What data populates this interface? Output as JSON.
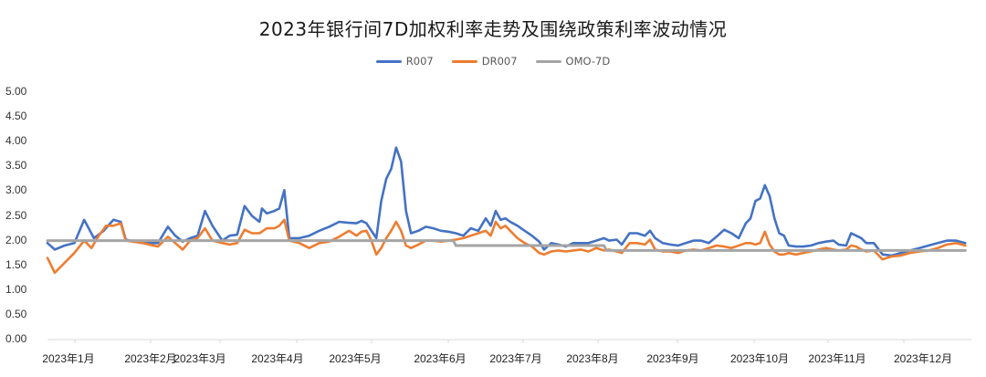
{
  "chart_data": {
    "type": "line",
    "title": "2023年银行间7D加权利率走势及围绕政策利率波动情况",
    "xlabel": "",
    "ylabel": "",
    "ylim": [
      0,
      5
    ],
    "y_ticks": [
      "5.00",
      "4.50",
      "4.00",
      "3.50",
      "3.00",
      "2.50",
      "2.00",
      "1.50",
      "1.00",
      "0.50",
      "0.00"
    ],
    "x_ticks": [
      "2023年1月",
      "2023年2月",
      "2023年3月",
      "2023年4月",
      "2023年5月",
      "2023年6月",
      "2023年7月",
      "2023年8月",
      "2023年9月",
      "2023年10月",
      "2023年11月",
      "2023年12月"
    ],
    "grid": false,
    "legend_position": "top",
    "x_unit": "day of year 2023 (approx.)",
    "series": [
      {
        "name": "R007",
        "color": "#4472C4",
        "points": [
          [
            1,
            1.95
          ],
          [
            4,
            1.82
          ],
          [
            8,
            1.9
          ],
          [
            12,
            1.95
          ],
          [
            16,
            2.42
          ],
          [
            20,
            2.05
          ],
          [
            24,
            2.2
          ],
          [
            28,
            2.42
          ],
          [
            31,
            2.38
          ],
          [
            33,
            2.02
          ],
          [
            40,
            1.95
          ],
          [
            46,
            1.95
          ],
          [
            50,
            2.28
          ],
          [
            53,
            2.1
          ],
          [
            56,
            1.98
          ],
          [
            59,
            2.05
          ],
          [
            62,
            2.1
          ],
          [
            65,
            2.6
          ],
          [
            68,
            2.3
          ],
          [
            72,
            2.0
          ],
          [
            75,
            2.1
          ],
          [
            78,
            2.12
          ],
          [
            81,
            2.7
          ],
          [
            84,
            2.5
          ],
          [
            87,
            2.38
          ],
          [
            88,
            2.65
          ],
          [
            90,
            2.55
          ],
          [
            93,
            2.6
          ],
          [
            95,
            2.65
          ],
          [
            97,
            3.02
          ],
          [
            99,
            2.05
          ],
          [
            103,
            2.05
          ],
          [
            107,
            2.1
          ],
          [
            111,
            2.2
          ],
          [
            115,
            2.28
          ],
          [
            119,
            2.38
          ],
          [
            123,
            2.36
          ],
          [
            126,
            2.35
          ],
          [
            128,
            2.4
          ],
          [
            130,
            2.35
          ],
          [
            132,
            2.2
          ],
          [
            134,
            2.05
          ],
          [
            136,
            2.8
          ],
          [
            138,
            3.25
          ],
          [
            140,
            3.45
          ],
          [
            142,
            3.88
          ],
          [
            144,
            3.6
          ],
          [
            146,
            2.6
          ],
          [
            148,
            2.15
          ],
          [
            151,
            2.2
          ],
          [
            154,
            2.28
          ],
          [
            157,
            2.25
          ],
          [
            160,
            2.2
          ],
          [
            163,
            2.18
          ],
          [
            166,
            2.15
          ],
          [
            169,
            2.1
          ],
          [
            172,
            2.25
          ],
          [
            175,
            2.2
          ],
          [
            178,
            2.45
          ],
          [
            180,
            2.3
          ],
          [
            182,
            2.6
          ],
          [
            184,
            2.42
          ],
          [
            186,
            2.45
          ],
          [
            188,
            2.38
          ],
          [
            191,
            2.3
          ],
          [
            194,
            2.2
          ],
          [
            197,
            2.1
          ],
          [
            200,
            1.98
          ],
          [
            202,
            1.82
          ],
          [
            205,
            1.95
          ],
          [
            208,
            1.92
          ],
          [
            211,
            1.88
          ],
          [
            214,
            1.95
          ],
          [
            217,
            1.95
          ],
          [
            220,
            1.95
          ],
          [
            223,
            2.0
          ],
          [
            226,
            2.05
          ],
          [
            228,
            2.0
          ],
          [
            231,
            2.02
          ],
          [
            233,
            1.92
          ],
          [
            236,
            2.15
          ],
          [
            239,
            2.15
          ],
          [
            242,
            2.1
          ],
          [
            244,
            2.2
          ],
          [
            246,
            2.05
          ],
          [
            249,
            1.95
          ],
          [
            252,
            1.92
          ],
          [
            255,
            1.9
          ],
          [
            258,
            1.95
          ],
          [
            261,
            2.0
          ],
          [
            264,
            2.0
          ],
          [
            267,
            1.95
          ],
          [
            270,
            2.08
          ],
          [
            273,
            2.22
          ],
          [
            276,
            2.15
          ],
          [
            279,
            2.05
          ],
          [
            282,
            2.35
          ],
          [
            284,
            2.45
          ],
          [
            286,
            2.8
          ],
          [
            288,
            2.85
          ],
          [
            290,
            3.12
          ],
          [
            292,
            2.9
          ],
          [
            294,
            2.45
          ],
          [
            296,
            2.15
          ],
          [
            298,
            2.1
          ],
          [
            300,
            1.9
          ],
          [
            303,
            1.88
          ],
          [
            306,
            1.88
          ],
          [
            309,
            1.9
          ],
          [
            312,
            1.95
          ],
          [
            315,
            1.98
          ],
          [
            318,
            2.0
          ],
          [
            320,
            1.92
          ],
          [
            323,
            1.9
          ],
          [
            325,
            2.15
          ],
          [
            327,
            2.1
          ],
          [
            329,
            2.05
          ],
          [
            331,
            1.95
          ],
          [
            334,
            1.95
          ],
          [
            337,
            1.72
          ],
          [
            340,
            1.7
          ],
          [
            343,
            1.75
          ],
          [
            346,
            1.8
          ],
          [
            349,
            1.85
          ],
          [
            352,
            1.9
          ],
          [
            355,
            1.95
          ],
          [
            358,
            2.0
          ],
          [
            361,
            2.0
          ],
          [
            364,
            1.95
          ]
        ]
      },
      {
        "name": "DR007",
        "color": "#ED7D31",
        "points": [
          [
            1,
            1.65
          ],
          [
            4,
            1.35
          ],
          [
            8,
            1.55
          ],
          [
            12,
            1.75
          ],
          [
            16,
            2.0
          ],
          [
            19,
            1.85
          ],
          [
            22,
            2.1
          ],
          [
            25,
            2.3
          ],
          [
            28,
            2.3
          ],
          [
            31,
            2.35
          ],
          [
            33,
            2.0
          ],
          [
            40,
            1.95
          ],
          [
            46,
            1.88
          ],
          [
            50,
            2.08
          ],
          [
            53,
            1.95
          ],
          [
            56,
            1.82
          ],
          [
            59,
            2.0
          ],
          [
            62,
            2.05
          ],
          [
            65,
            2.25
          ],
          [
            68,
            2.0
          ],
          [
            72,
            1.95
          ],
          [
            75,
            1.92
          ],
          [
            78,
            1.95
          ],
          [
            81,
            2.22
          ],
          [
            84,
            2.15
          ],
          [
            87,
            2.15
          ],
          [
            90,
            2.25
          ],
          [
            93,
            2.25
          ],
          [
            95,
            2.3
          ],
          [
            97,
            2.42
          ],
          [
            99,
            2.0
          ],
          [
            103,
            1.95
          ],
          [
            107,
            1.85
          ],
          [
            111,
            1.95
          ],
          [
            115,
            1.98
          ],
          [
            119,
            2.08
          ],
          [
            123,
            2.2
          ],
          [
            126,
            2.1
          ],
          [
            128,
            2.18
          ],
          [
            130,
            2.2
          ],
          [
            132,
            2.0
          ],
          [
            134,
            1.72
          ],
          [
            136,
            1.85
          ],
          [
            138,
            2.05
          ],
          [
            140,
            2.2
          ],
          [
            142,
            2.38
          ],
          [
            144,
            2.2
          ],
          [
            146,
            1.9
          ],
          [
            148,
            1.85
          ],
          [
            151,
            1.92
          ],
          [
            154,
            2.0
          ],
          [
            157,
            2.0
          ],
          [
            160,
            1.98
          ],
          [
            163,
            2.0
          ],
          [
            166,
            2.02
          ],
          [
            169,
            2.05
          ],
          [
            172,
            2.1
          ],
          [
            175,
            2.15
          ],
          [
            178,
            2.2
          ],
          [
            180,
            2.1
          ],
          [
            182,
            2.38
          ],
          [
            184,
            2.25
          ],
          [
            186,
            2.3
          ],
          [
            188,
            2.2
          ],
          [
            191,
            2.05
          ],
          [
            194,
            1.95
          ],
          [
            197,
            1.88
          ],
          [
            200,
            1.75
          ],
          [
            202,
            1.72
          ],
          [
            205,
            1.78
          ],
          [
            208,
            1.8
          ],
          [
            211,
            1.78
          ],
          [
            214,
            1.8
          ],
          [
            217,
            1.82
          ],
          [
            220,
            1.78
          ],
          [
            223,
            1.85
          ],
          [
            226,
            1.8
          ],
          [
            228,
            1.82
          ],
          [
            231,
            1.78
          ],
          [
            233,
            1.75
          ],
          [
            236,
            1.95
          ],
          [
            239,
            1.95
          ],
          [
            242,
            1.92
          ],
          [
            244,
            2.02
          ],
          [
            246,
            1.82
          ],
          [
            249,
            1.78
          ],
          [
            252,
            1.78
          ],
          [
            255,
            1.75
          ],
          [
            258,
            1.8
          ],
          [
            261,
            1.82
          ],
          [
            264,
            1.8
          ],
          [
            267,
            1.85
          ],
          [
            270,
            1.9
          ],
          [
            273,
            1.88
          ],
          [
            276,
            1.85
          ],
          [
            279,
            1.9
          ],
          [
            282,
            1.95
          ],
          [
            284,
            1.95
          ],
          [
            286,
            1.92
          ],
          [
            288,
            1.95
          ],
          [
            290,
            2.18
          ],
          [
            292,
            1.92
          ],
          [
            294,
            1.78
          ],
          [
            296,
            1.72
          ],
          [
            298,
            1.72
          ],
          [
            300,
            1.75
          ],
          [
            303,
            1.72
          ],
          [
            306,
            1.75
          ],
          [
            309,
            1.78
          ],
          [
            312,
            1.82
          ],
          [
            315,
            1.85
          ],
          [
            318,
            1.82
          ],
          [
            320,
            1.8
          ],
          [
            323,
            1.82
          ],
          [
            325,
            1.9
          ],
          [
            327,
            1.88
          ],
          [
            329,
            1.82
          ],
          [
            331,
            1.78
          ],
          [
            334,
            1.8
          ],
          [
            337,
            1.62
          ],
          [
            340,
            1.68
          ],
          [
            343,
            1.7
          ],
          [
            346,
            1.75
          ],
          [
            349,
            1.78
          ],
          [
            352,
            1.8
          ],
          [
            355,
            1.85
          ],
          [
            358,
            1.92
          ],
          [
            361,
            1.95
          ],
          [
            364,
            1.9
          ]
        ]
      },
      {
        "name": "OMO-7D",
        "color": "#A5A5A5",
        "points": [
          [
            1,
            2.0
          ],
          [
            165,
            2.0
          ],
          [
            166,
            1.9
          ],
          [
            226,
            1.9
          ],
          [
            227,
            1.8
          ],
          [
            364,
            1.8
          ]
        ]
      }
    ]
  }
}
